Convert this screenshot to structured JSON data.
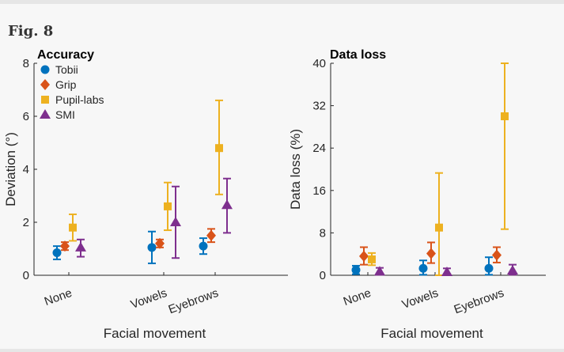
{
  "figure": {
    "label": "Fig. 8"
  },
  "colors": {
    "Tobii": "#0072bd",
    "Grip": "#d95319",
    "Pupil-labs": "#edb120",
    "SMI": "#7e2f8e"
  },
  "chart_data": [
    {
      "type": "scatter",
      "title": "Accuracy",
      "xlabel": "Facial movement",
      "ylabel": "Deviation (°)",
      "categories": [
        "None",
        "Vowels",
        "Eyebrows"
      ],
      "ylim": [
        0,
        8
      ],
      "yticks": [
        "0",
        "2",
        "4",
        "6",
        "8"
      ],
      "legend": "top-left",
      "series": [
        {
          "name": "Tobii",
          "marker": "circle",
          "values": [
            0.85,
            1.05,
            1.1
          ],
          "low": [
            0.6,
            0.45,
            0.8
          ],
          "high": [
            1.1,
            1.65,
            1.4
          ]
        },
        {
          "name": "Grip",
          "marker": "diamond",
          "values": [
            1.1,
            1.2,
            1.5
          ],
          "low": [
            0.95,
            1.05,
            1.25
          ],
          "high": [
            1.25,
            1.35,
            1.75
          ]
        },
        {
          "name": "Pupil-labs",
          "marker": "square",
          "values": [
            1.8,
            2.6,
            4.8
          ],
          "low": [
            1.3,
            1.7,
            3.05
          ],
          "high": [
            2.3,
            3.5,
            6.6
          ]
        },
        {
          "name": "SMI",
          "marker": "triangle",
          "values": [
            1.05,
            2.0,
            2.65
          ],
          "low": [
            0.7,
            0.65,
            1.6
          ],
          "high": [
            1.35,
            3.35,
            3.65
          ]
        }
      ]
    },
    {
      "type": "scatter",
      "title": "Data loss",
      "xlabel": "Facial movement",
      "ylabel": "Data loss (%)",
      "categories": [
        "None",
        "Vowels",
        "Eyebrows"
      ],
      "ylim": [
        0,
        40
      ],
      "yticks": [
        "0",
        "8",
        "16",
        "24",
        "32",
        "40"
      ],
      "series": [
        {
          "name": "Tobii",
          "marker": "circle",
          "values": [
            1.0,
            1.3,
            1.3
          ],
          "low": [
            0.2,
            0.1,
            0.1
          ],
          "high": [
            1.8,
            2.8,
            3.4
          ]
        },
        {
          "name": "Grip",
          "marker": "diamond",
          "values": [
            3.6,
            4.1,
            3.8
          ],
          "low": [
            2.0,
            2.3,
            2.4
          ],
          "high": [
            5.3,
            6.2,
            5.3
          ]
        },
        {
          "name": "Pupil-labs",
          "marker": "square",
          "values": [
            3.0,
            9.0,
            30.0
          ],
          "low": [
            1.9,
            0.0,
            8.7
          ],
          "high": [
            4.2,
            19.3,
            40.0
          ]
        },
        {
          "name": "SMI",
          "marker": "triangle",
          "values": [
            0.7,
            0.6,
            0.9
          ],
          "low": [
            0.1,
            0.0,
            0.1
          ],
          "high": [
            1.4,
            1.3,
            2.0
          ]
        }
      ]
    }
  ]
}
